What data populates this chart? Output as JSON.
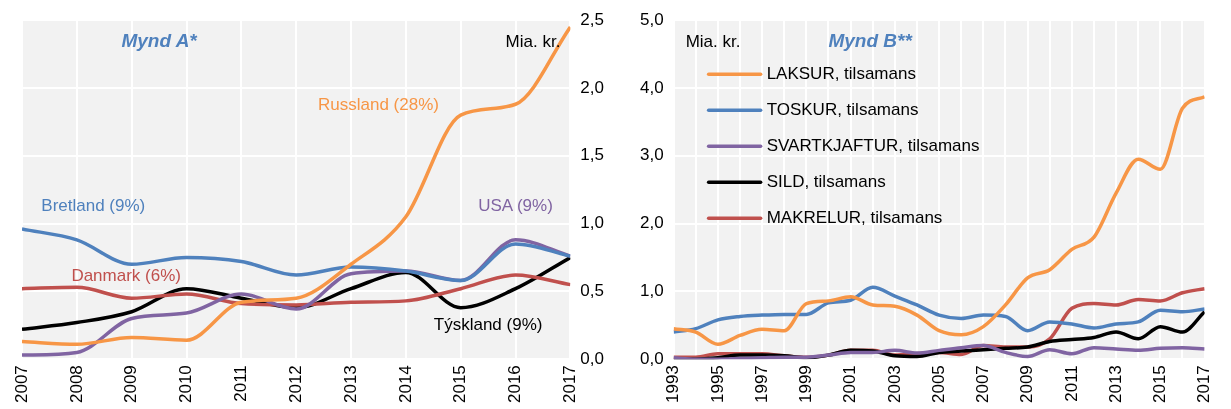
{
  "chart_data": [
    {
      "type": "line",
      "title": "Mynd A*",
      "ylabel": "Mia. kr.",
      "grid": true,
      "x": [
        2007,
        2008,
        2009,
        2010,
        2011,
        2012,
        2013,
        2014,
        2015,
        2016,
        2017
      ],
      "xlim": [
        2007,
        2017
      ],
      "xticks": [
        2007,
        2008,
        2009,
        2010,
        2011,
        2012,
        2013,
        2014,
        2015,
        2016,
        2017
      ],
      "ylim": [
        0,
        2.5
      ],
      "yticks": [
        {
          "value": 0,
          "label": "0,0"
        },
        {
          "value": 0.5,
          "label": "0,5"
        },
        {
          "value": 1,
          "label": "1,0"
        },
        {
          "value": 1.5,
          "label": "1,5"
        },
        {
          "value": 2,
          "label": "2,0"
        },
        {
          "value": 2.5,
          "label": "2,5"
        }
      ],
      "series": [
        {
          "name": "Russland (28%)",
          "color": "#f79646",
          "values": [
            0.13,
            0.11,
            0.16,
            0.14,
            0.42,
            0.45,
            0.7,
            1.05,
            1.8,
            1.88,
            2.45
          ]
        },
        {
          "name": "Bretland (9%)",
          "color": "#4f81bd",
          "values": [
            0.96,
            0.88,
            0.7,
            0.75,
            0.72,
            0.62,
            0.68,
            0.65,
            0.58,
            0.85,
            0.76
          ]
        },
        {
          "name": "USA (9%)",
          "color": "#8064a2",
          "values": [
            0.03,
            0.05,
            0.3,
            0.34,
            0.48,
            0.37,
            0.63,
            0.65,
            0.58,
            0.88,
            0.76
          ]
        },
        {
          "name": "Danmark (6%)",
          "color": "#c0504d",
          "values": [
            0.52,
            0.53,
            0.45,
            0.48,
            0.41,
            0.4,
            0.42,
            0.43,
            0.52,
            0.62,
            0.55
          ]
        },
        {
          "name": "Týskland (9%)",
          "color": "#000000",
          "values": [
            0.22,
            0.27,
            0.35,
            0.52,
            0.45,
            0.38,
            0.52,
            0.64,
            0.38,
            0.52,
            0.75
          ]
        }
      ]
    },
    {
      "type": "line",
      "title": "Mynd B**",
      "ylabel": "Mia. kr.",
      "grid": true,
      "legend": "top left",
      "x": [
        1993,
        1994,
        1995,
        1996,
        1997,
        1998,
        1999,
        2000,
        2001,
        2002,
        2003,
        2004,
        2005,
        2006,
        2007,
        2008,
        2009,
        2010,
        2011,
        2012,
        2013,
        2014,
        2015,
        2016,
        2017
      ],
      "xlim": [
        1993,
        2017
      ],
      "xticks": [
        1993,
        {
          "value": 1994,
          "label": null
        },
        1995,
        {
          "value": 1996,
          "label": null
        },
        1997,
        {
          "value": 1998,
          "label": null
        },
        1999,
        {
          "value": 2000,
          "label": null
        },
        2001,
        {
          "value": 2002,
          "label": null
        },
        2003,
        {
          "value": 2004,
          "label": null
        },
        2005,
        {
          "value": 2006,
          "label": null
        },
        2007,
        {
          "value": 2008,
          "label": null
        },
        2009,
        {
          "value": 2010,
          "label": null
        },
        2011,
        {
          "value": 2012,
          "label": null
        },
        2013,
        {
          "value": 2014,
          "label": null
        },
        2015,
        {
          "value": 2016,
          "label": null
        },
        2017
      ],
      "ylim": [
        0,
        5
      ],
      "yticks": [
        {
          "value": 0,
          "label": "0,0"
        },
        {
          "value": 1,
          "label": "1,0"
        },
        {
          "value": 2,
          "label": "2,0"
        },
        {
          "value": 3,
          "label": "3,0"
        },
        {
          "value": 4,
          "label": "4,0"
        },
        {
          "value": 5,
          "label": "5,0"
        }
      ],
      "series": [
        {
          "name": "LAKSUR, tilsamans",
          "color": "#f79646",
          "values": [
            0.45,
            0.4,
            0.22,
            0.35,
            0.44,
            0.42,
            0.82,
            0.86,
            0.92,
            0.8,
            0.78,
            0.65,
            0.42,
            0.36,
            0.48,
            0.8,
            1.2,
            1.32,
            1.62,
            1.8,
            2.45,
            2.95,
            2.8,
            3.7,
            3.87
          ]
        },
        {
          "name": "TOSKUR, tilsamans",
          "color": "#4f81bd",
          "values": [
            0.4,
            0.45,
            0.58,
            0.63,
            0.65,
            0.66,
            0.66,
            0.83,
            0.87,
            1.06,
            0.93,
            0.8,
            0.65,
            0.6,
            0.65,
            0.63,
            0.42,
            0.55,
            0.52,
            0.46,
            0.52,
            0.55,
            0.72,
            0.7,
            0.74
          ]
        },
        {
          "name": "SVARTKJAFTUR, tilsamans",
          "color": "#8064a2",
          "values": [
            0.02,
            0.0,
            0.0,
            0.01,
            0.02,
            0.03,
            0.03,
            0.06,
            0.1,
            0.1,
            0.13,
            0.09,
            0.13,
            0.17,
            0.2,
            0.1,
            0.04,
            0.14,
            0.08,
            0.17,
            0.15,
            0.13,
            0.16,
            0.17,
            0.15
          ]
        },
        {
          "name": "SILD, tilsamans",
          "color": "#000000",
          "values": [
            0.0,
            0.0,
            0.02,
            0.06,
            0.06,
            0.05,
            0.02,
            0.06,
            0.13,
            0.12,
            0.05,
            0.04,
            0.1,
            0.12,
            0.14,
            0.16,
            0.18,
            0.26,
            0.29,
            0.32,
            0.4,
            0.3,
            0.48,
            0.4,
            0.7
          ]
        },
        {
          "name": "MAKRELUR, tilsamans",
          "color": "#c0504d",
          "values": [
            0.03,
            0.03,
            0.08,
            0.08,
            0.08,
            0.05,
            0.03,
            0.06,
            0.13,
            0.13,
            0.06,
            0.08,
            0.1,
            0.07,
            0.2,
            0.18,
            0.18,
            0.3,
            0.75,
            0.82,
            0.8,
            0.88,
            0.86,
            0.98,
            1.04
          ]
        }
      ]
    }
  ]
}
